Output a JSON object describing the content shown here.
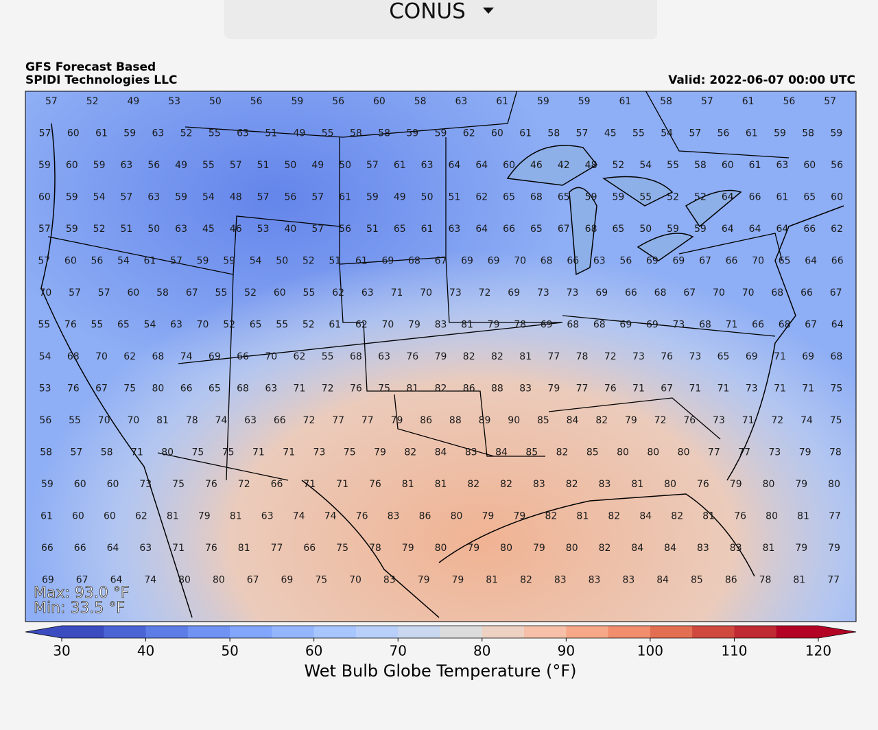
{
  "selector": {
    "region": "CONUS"
  },
  "header": {
    "line1": "GFS Forecast Based",
    "line2": "SPIDI Technologies LLC",
    "valid": "Valid: 2022-06-07 00:00 UTC"
  },
  "stats": {
    "max": "Max: 93.0 °F",
    "min": "Min: 33.5 °F"
  },
  "colorbar": {
    "lim": [
      30,
      120
    ],
    "step": 5,
    "ticks": [
      30,
      40,
      50,
      60,
      70,
      80,
      90,
      100,
      110,
      120
    ],
    "label": "Wet Bulb Globe Temperature (°F)",
    "colors": [
      "#3b4cc0",
      "#4b64d5",
      "#5d7ce6",
      "#6f92f3",
      "#82a6fb",
      "#94b6ff",
      "#a7c5fe",
      "#b8d0f9",
      "#c9d7f0",
      "#dcdcdc",
      "#edd1c2",
      "#f5c0a7",
      "#f7a889",
      "#f08e6d",
      "#e36f53",
      "#d0493f",
      "#c02a32",
      "#b40426"
    ]
  },
  "stations": [
    [
      57,
      52,
      49,
      53,
      50,
      56,
      59,
      56,
      60,
      58,
      63,
      61,
      59,
      59,
      61,
      58,
      57,
      61,
      56,
      57
    ],
    [
      57,
      60,
      61,
      59,
      63,
      52,
      55,
      63,
      51,
      49,
      55,
      58,
      58,
      59,
      59,
      62,
      60,
      61,
      58,
      57,
      45,
      55,
      54,
      57,
      56,
      61,
      59,
      58,
      59
    ],
    [
      59,
      60,
      59,
      63,
      56,
      49,
      55,
      57,
      51,
      50,
      49,
      50,
      57,
      61,
      63,
      64,
      64,
      60,
      46,
      42,
      48,
      52,
      54,
      55,
      58,
      60,
      61,
      63,
      60,
      56
    ],
    [
      60,
      59,
      54,
      57,
      63,
      59,
      54,
      48,
      57,
      56,
      57,
      61,
      59,
      49,
      50,
      51,
      62,
      65,
      68,
      65,
      59,
      59,
      55,
      52,
      52,
      64,
      66,
      61,
      65,
      60
    ],
    [
      57,
      59,
      52,
      51,
      50,
      63,
      45,
      46,
      53,
      40,
      57,
      56,
      51,
      65,
      61,
      63,
      64,
      66,
      65,
      67,
      68,
      65,
      50,
      59,
      59,
      64,
      64,
      64,
      66,
      62
    ],
    [
      57,
      60,
      56,
      54,
      61,
      57,
      59,
      59,
      54,
      50,
      52,
      51,
      61,
      69,
      68,
      67,
      69,
      69,
      70,
      68,
      66,
      63,
      56,
      69,
      69,
      67,
      66,
      70,
      65,
      64,
      66
    ],
    [
      70,
      57,
      57,
      60,
      58,
      67,
      55,
      52,
      60,
      55,
      62,
      63,
      71,
      70,
      73,
      72,
      69,
      73,
      73,
      69,
      66,
      68,
      67,
      70,
      70,
      68,
      66,
      67
    ],
    [
      55,
      76,
      55,
      65,
      54,
      63,
      70,
      52,
      65,
      55,
      52,
      61,
      62,
      70,
      79,
      83,
      81,
      79,
      78,
      69,
      68,
      68,
      69,
      69,
      73,
      68,
      71,
      66,
      68,
      67,
      64
    ],
    [
      54,
      68,
      70,
      62,
      68,
      74,
      69,
      66,
      70,
      62,
      55,
      68,
      63,
      76,
      79,
      82,
      82,
      81,
      77,
      78,
      72,
      73,
      76,
      73,
      65,
      69,
      71,
      69,
      68
    ],
    [
      53,
      76,
      67,
      75,
      80,
      66,
      65,
      68,
      63,
      71,
      72,
      76,
      75,
      81,
      82,
      86,
      88,
      83,
      79,
      77,
      76,
      71,
      67,
      71,
      71,
      73,
      71,
      71,
      75
    ],
    [
      56,
      55,
      70,
      70,
      81,
      78,
      74,
      63,
      66,
      72,
      77,
      77,
      79,
      86,
      88,
      89,
      90,
      85,
      84,
      82,
      79,
      72,
      76,
      73,
      71,
      72,
      74,
      75
    ],
    [
      58,
      57,
      58,
      71,
      80,
      75,
      75,
      71,
      71,
      73,
      75,
      79,
      82,
      84,
      83,
      84,
      85,
      82,
      85,
      80,
      80,
      80,
      77,
      77,
      73,
      79,
      78
    ],
    [
      59,
      60,
      60,
      73,
      75,
      76,
      72,
      66,
      71,
      71,
      76,
      81,
      81,
      82,
      82,
      83,
      82,
      83,
      81,
      80,
      76,
      79,
      80,
      79,
      80
    ],
    [
      61,
      60,
      60,
      62,
      81,
      79,
      81,
      63,
      74,
      74,
      76,
      83,
      86,
      80,
      79,
      79,
      82,
      81,
      82,
      84,
      82,
      81,
      76,
      80,
      81,
      77
    ],
    [
      66,
      66,
      64,
      63,
      71,
      76,
      81,
      77,
      66,
      75,
      78,
      79,
      80,
      79,
      80,
      79,
      80,
      82,
      84,
      84,
      83,
      83,
      81,
      79,
      79
    ],
    [
      69,
      67,
      64,
      74,
      80,
      80,
      67,
      69,
      75,
      70,
      83,
      79,
      79,
      81,
      82,
      83,
      83,
      83,
      84,
      85,
      86,
      78,
      81,
      77
    ]
  ]
}
